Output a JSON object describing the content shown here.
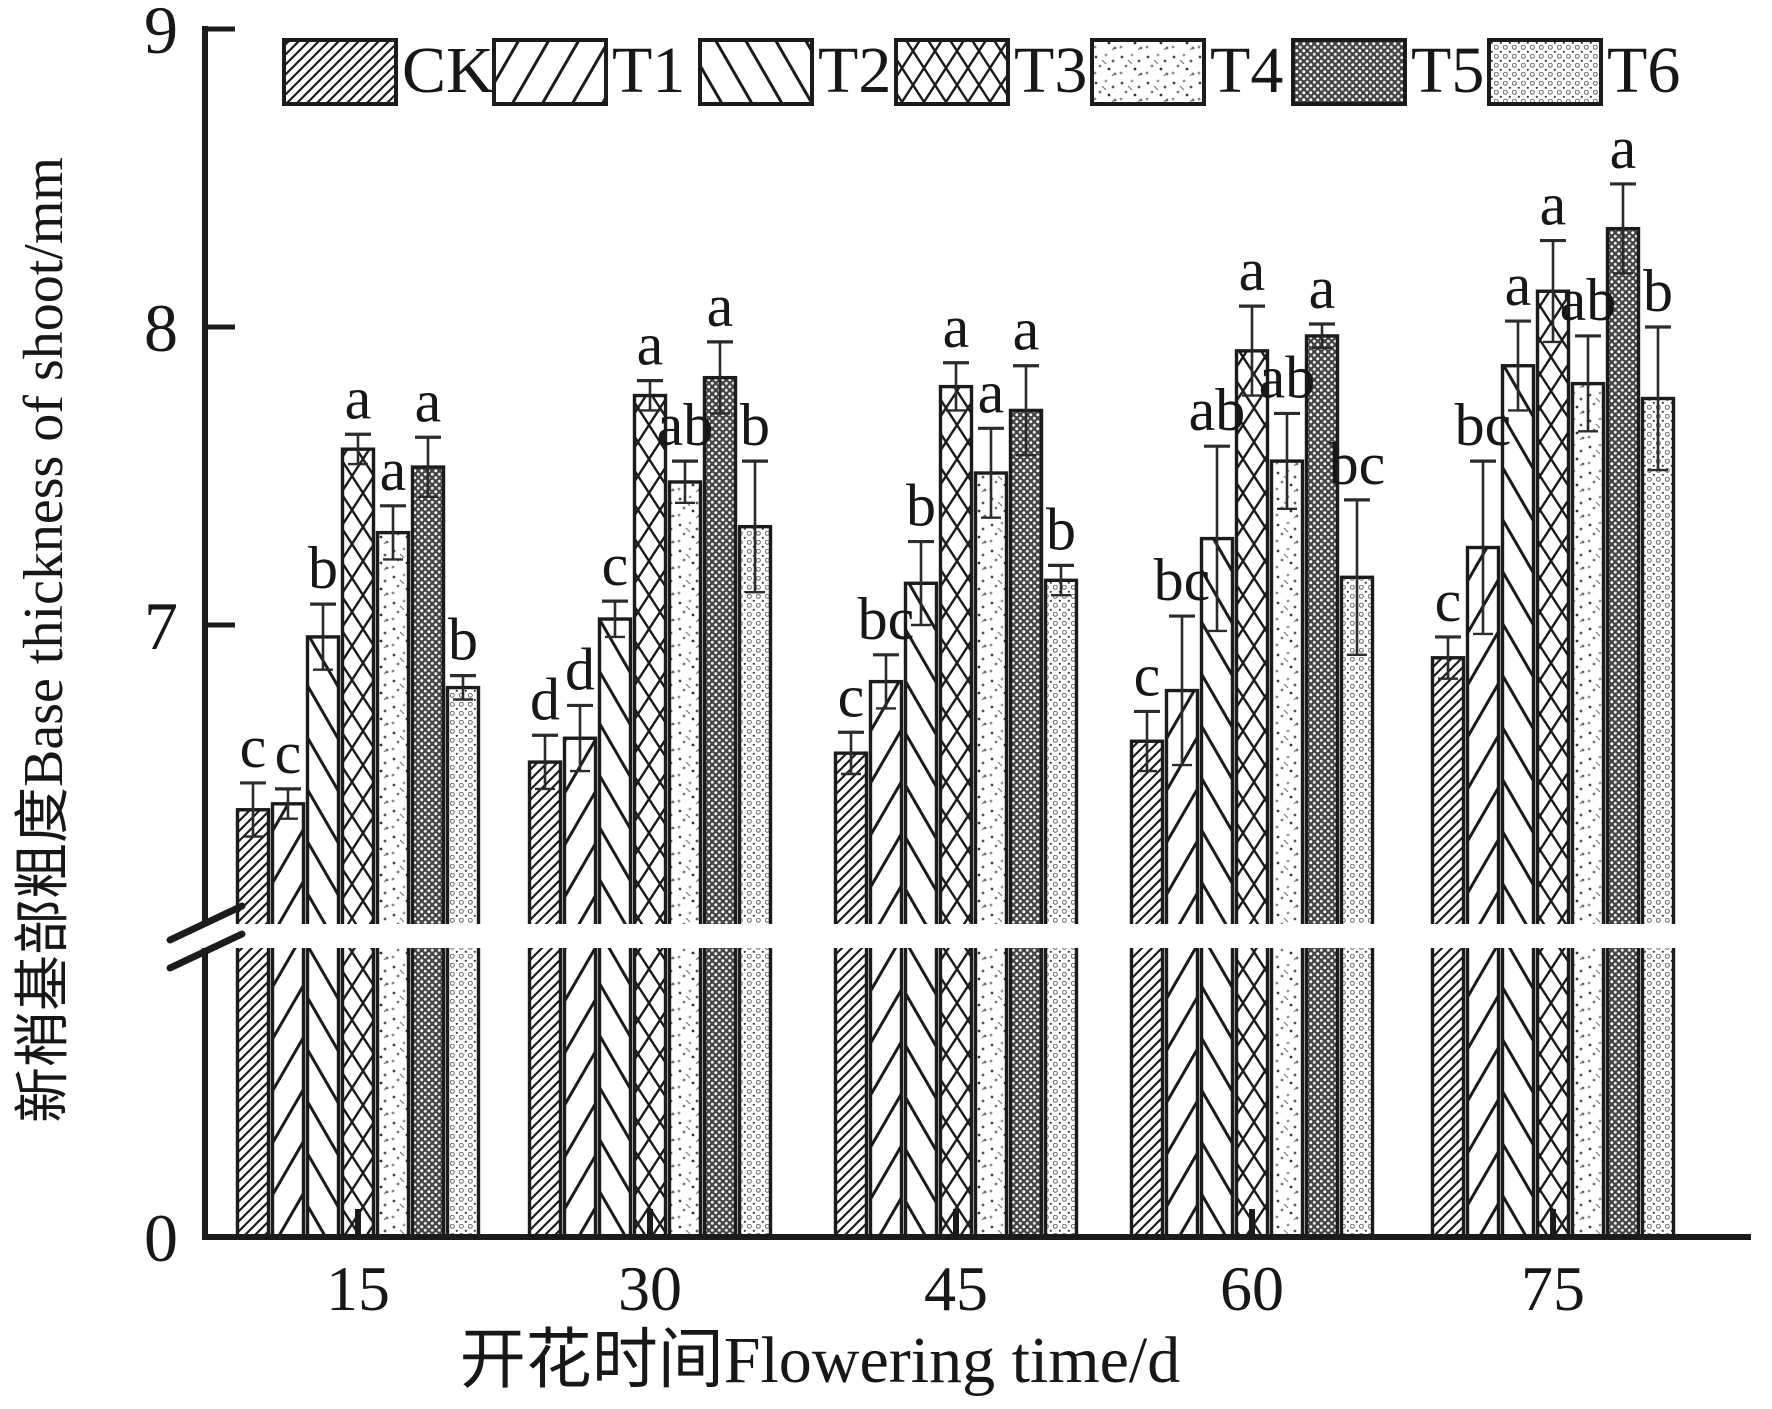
{
  "page": {
    "background": "#ffffff",
    "ink": "#1b1b1b"
  },
  "legend": {
    "position": "top",
    "items": [
      {
        "label": "CK",
        "pattern": "hatch-dense-forward"
      },
      {
        "label": "T1",
        "pattern": "hatch-forward"
      },
      {
        "label": "T2",
        "pattern": "hatch-backward"
      },
      {
        "label": "T3",
        "pattern": "crosshatch"
      },
      {
        "label": "T4",
        "pattern": "speckle-light"
      },
      {
        "label": "T5",
        "pattern": "checker-dark"
      },
      {
        "label": "T6",
        "pattern": "dots-medium"
      }
    ]
  },
  "axes": {
    "y_label": "新梢基部粗度Base thickness of shoot/mm",
    "x_label": "开花时间Flowering time/d",
    "y_tick_labels": [
      "9",
      "8",
      "7",
      "0"
    ],
    "x_tick_labels": [
      "15",
      "30",
      "45",
      "60",
      "75"
    ],
    "has_axis_break": true
  },
  "chart_data": {
    "type": "bar",
    "title": "",
    "xlabel": "开花时间Flowering time/d",
    "ylabel": "新梢基部粗度Base thickness of shoot/mm",
    "categories": [
      "15",
      "30",
      "45",
      "60",
      "75"
    ],
    "y_ticks": [
      0,
      7,
      8,
      9
    ],
    "ylim": [
      0,
      9
    ],
    "axis_break": {
      "between": [
        0,
        6.0
      ]
    },
    "grid": false,
    "legend_position": "top",
    "error_bars": true,
    "series": [
      {
        "name": "CK",
        "pattern": "hatch-dense-forward",
        "values": [
          6.38,
          6.54,
          6.57,
          6.61,
          6.89
        ],
        "errors": [
          0.09,
          0.09,
          0.07,
          0.1,
          0.07
        ],
        "sig_letters": [
          "c",
          "d",
          "c",
          "c",
          "c"
        ]
      },
      {
        "name": "T1",
        "pattern": "hatch-forward",
        "values": [
          6.4,
          6.62,
          6.81,
          6.78,
          7.26
        ],
        "errors": [
          0.05,
          0.11,
          0.09,
          0.25,
          0.29
        ],
        "sig_letters": [
          "c",
          "d",
          "bc",
          "bc",
          "bc"
        ]
      },
      {
        "name": "T2",
        "pattern": "hatch-backward",
        "values": [
          6.96,
          7.02,
          7.14,
          7.29,
          7.87
        ],
        "errors": [
          0.11,
          0.06,
          0.14,
          0.31,
          0.15
        ],
        "sig_letters": [
          "b",
          "c",
          "b",
          "ab",
          "a"
        ]
      },
      {
        "name": "T3",
        "pattern": "crosshatch",
        "values": [
          7.59,
          7.77,
          7.8,
          7.92,
          8.12
        ],
        "errors": [
          0.05,
          0.05,
          0.08,
          0.15,
          0.17
        ],
        "sig_letters": [
          "a",
          "a",
          "a",
          "a",
          "a"
        ]
      },
      {
        "name": "T4",
        "pattern": "speckle-light",
        "values": [
          7.31,
          7.48,
          7.51,
          7.55,
          7.81
        ],
        "errors": [
          0.09,
          0.07,
          0.15,
          0.16,
          0.16
        ],
        "sig_letters": [
          "a",
          "ab",
          "a",
          "ab",
          "ab"
        ]
      },
      {
        "name": "T5",
        "pattern": "checker-dark",
        "values": [
          7.53,
          7.83,
          7.72,
          7.97,
          8.33
        ],
        "errors": [
          0.1,
          0.12,
          0.15,
          0.04,
          0.15
        ],
        "sig_letters": [
          "a",
          "a",
          "a",
          "a",
          "a"
        ]
      },
      {
        "name": "T6",
        "pattern": "dots-medium",
        "values": [
          6.79,
          7.33,
          7.15,
          7.16,
          7.76
        ],
        "errors": [
          0.04,
          0.22,
          0.05,
          0.26,
          0.24
        ],
        "sig_letters": [
          "b",
          "b",
          "b",
          "bc",
          "b"
        ]
      }
    ]
  }
}
